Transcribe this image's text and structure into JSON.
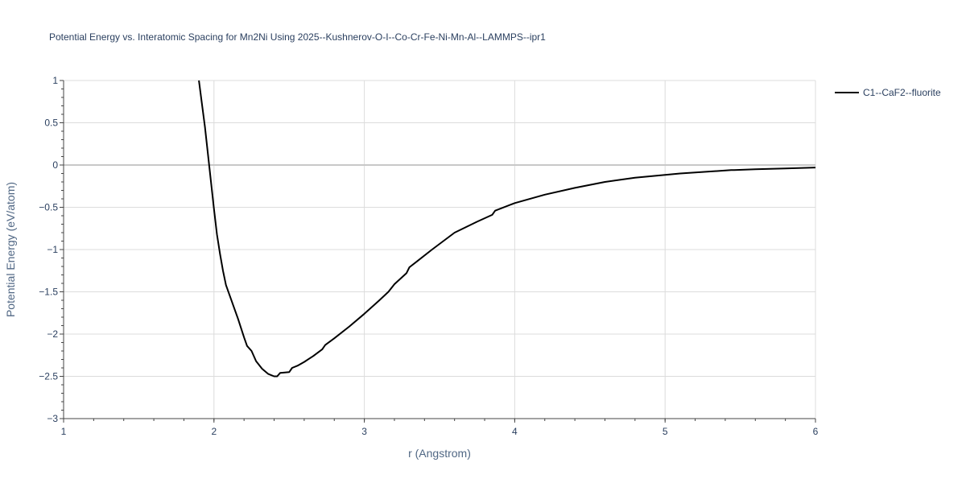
{
  "chart_data": {
    "type": "line",
    "title": "Potential Energy vs. Interatomic Spacing for Mn2Ni Using 2025--Kushnerov-O-I--Co-Cr-Fe-Ni-Mn-Al--LAMMPS--ipr1",
    "xlabel": "r (Angstrom)",
    "ylabel": "Potential Energy (eV/atom)",
    "xlim": [
      1,
      6
    ],
    "ylim": [
      -3,
      1
    ],
    "x_ticks": [
      1,
      2,
      3,
      4,
      5,
      6
    ],
    "x_tick_labels": [
      "1",
      "2",
      "3",
      "4",
      "5",
      "6"
    ],
    "y_ticks": [
      1,
      0.5,
      0,
      -0.5,
      -1,
      -1.5,
      -2,
      -2.5,
      -3
    ],
    "y_tick_labels": [
      "1",
      "0.5",
      "0",
      "−0.5",
      "−1",
      "−1.5",
      "−2",
      "−2.5",
      "−3"
    ],
    "grid": true,
    "legend_position": "top-right",
    "series": [
      {
        "name": "C1--CaF2--fluorite",
        "color": "#000000",
        "x": [
          1.9,
          1.92,
          1.94,
          1.96,
          1.98,
          2.0,
          2.02,
          2.04,
          2.06,
          2.08,
          2.12,
          2.16,
          2.2,
          2.22,
          2.25,
          2.28,
          2.32,
          2.36,
          2.4,
          2.42,
          2.44,
          2.5,
          2.52,
          2.56,
          2.6,
          2.66,
          2.72,
          2.74,
          2.8,
          2.9,
          3.0,
          3.1,
          3.16,
          3.2,
          3.28,
          3.3,
          3.35,
          3.45,
          3.6,
          3.75,
          3.85,
          3.87,
          4.0,
          4.2,
          4.4,
          4.6,
          4.8,
          5.1,
          5.44,
          5.46,
          5.6,
          5.8,
          6.0
        ],
        "y": [
          1.0,
          0.72,
          0.45,
          0.13,
          -0.2,
          -0.52,
          -0.82,
          -1.05,
          -1.25,
          -1.42,
          -1.62,
          -1.82,
          -2.04,
          -2.14,
          -2.2,
          -2.32,
          -2.41,
          -2.47,
          -2.5,
          -2.5,
          -2.46,
          -2.45,
          -2.4,
          -2.37,
          -2.33,
          -2.26,
          -2.18,
          -2.13,
          -2.05,
          -1.91,
          -1.76,
          -1.6,
          -1.5,
          -1.41,
          -1.28,
          -1.21,
          -1.14,
          -1.0,
          -0.8,
          -0.67,
          -0.59,
          -0.54,
          -0.45,
          -0.35,
          -0.27,
          -0.2,
          -0.15,
          -0.1,
          -0.06,
          -0.06,
          -0.05,
          -0.04,
          -0.03
        ]
      }
    ]
  }
}
